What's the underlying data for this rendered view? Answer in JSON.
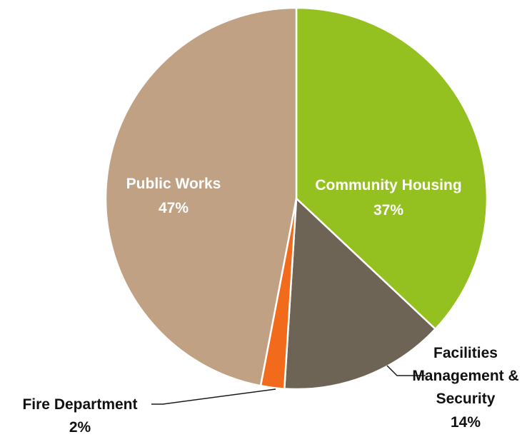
{
  "chart_data": {
    "type": "pie",
    "title": "",
    "slices": [
      {
        "label": "Community Housing",
        "value_text": "37%",
        "value": 37,
        "color": "#94c11f"
      },
      {
        "label": "Facilities Management & Security",
        "label_lines": [
          "Facilities",
          "Management &",
          "Security"
        ],
        "value_text": "14%",
        "value": 14,
        "color": "#6e6456"
      },
      {
        "label": "Fire Department",
        "value_text": "2%",
        "value": 2,
        "color": "#f26a1b"
      },
      {
        "label": "Public Works",
        "value_text": "47%",
        "value": 47,
        "color": "#c0a184"
      }
    ],
    "start_angle_deg": 0,
    "direction": "clockwise"
  }
}
